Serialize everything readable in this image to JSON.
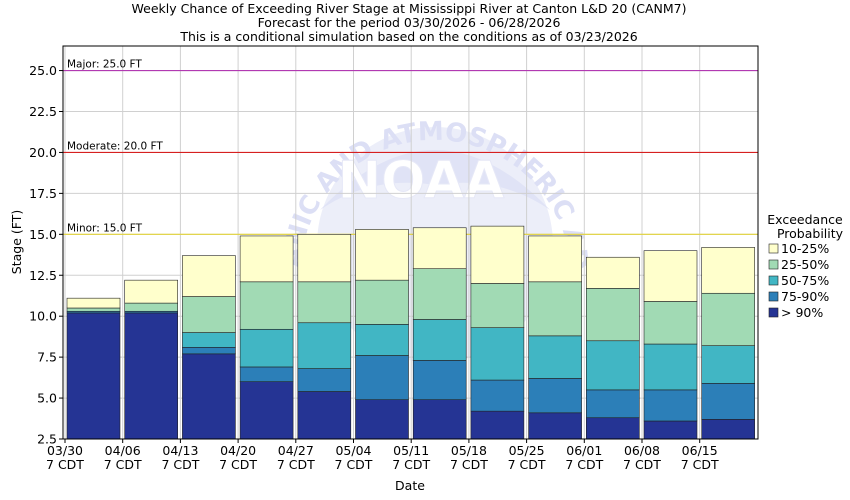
{
  "titles": [
    "Weekly Chance of Exceeding River Stage at Mississippi River at Canton L&D 20 (CANM7)",
    "Forecast for the period 03/30/2026 - 06/28/2026",
    "This is a conditional simulation based on the conditions as of 03/23/2026"
  ],
  "watermark": {
    "logo_text": "NOAA",
    "arc_text": "NATIONAL OCEANIC AND ATMOSPHERIC ADMINISTRATION"
  },
  "chart_data": {
    "type": "bar",
    "subtype": "stacked-floating-bar",
    "xlabel": "Date",
    "ylabel": "Stage (FT)",
    "ylim": [
      2.5,
      26.5
    ],
    "yticks": [
      "2.5",
      "5.0",
      "7.5",
      "10.0",
      "12.5",
      "15.0",
      "17.5",
      "20.0",
      "22.5",
      "25.0"
    ],
    "grid": true,
    "legend_title": [
      "Exceedance",
      "Probability"
    ],
    "legend_position": "right",
    "categories": [
      "03/30",
      "04/06",
      "04/13",
      "04/20",
      "04/27",
      "05/04",
      "05/11",
      "05/18",
      "05/25",
      "06/01",
      "06/08",
      "06/15"
    ],
    "category_sublabel": "7 CDT",
    "thresholds": [
      {
        "label": "Major: 25.0 FT",
        "value": 25.0,
        "color": "#b23ab2"
      },
      {
        "label": "Moderate: 20.0 FT",
        "value": 20.0,
        "color": "#d62020"
      },
      {
        "label": "Minor: 15.0 FT",
        "value": 15.0,
        "color": "#e3d43a"
      }
    ],
    "series": [
      {
        "name": "> 90%",
        "color": "#253494",
        "values": [
          10.2,
          10.2,
          7.7,
          6.0,
          5.4,
          4.9,
          4.9,
          4.2,
          4.1,
          3.8,
          3.6,
          3.7
        ]
      },
      {
        "name": "75-90%",
        "color": "#2c7fb8",
        "values": [
          10.3,
          10.3,
          8.1,
          6.9,
          6.8,
          7.6,
          7.3,
          6.1,
          6.2,
          5.5,
          5.5,
          5.9
        ]
      },
      {
        "name": "50-75%",
        "color": "#41b6c4",
        "values": [
          10.3,
          10.3,
          9.0,
          9.2,
          9.6,
          9.5,
          9.8,
          9.3,
          8.8,
          8.5,
          8.3,
          8.2
        ]
      },
      {
        "name": "25-50%",
        "color": "#a1dab4",
        "values": [
          10.5,
          10.8,
          11.2,
          12.1,
          12.1,
          12.2,
          12.9,
          12.0,
          12.1,
          11.7,
          10.9,
          11.4
        ]
      },
      {
        "name": "10-25%",
        "color": "#ffffcc",
        "values": [
          11.1,
          12.2,
          13.7,
          14.9,
          15.0,
          15.3,
          15.4,
          15.5,
          14.9,
          13.6,
          14.0,
          14.2
        ]
      }
    ]
  }
}
